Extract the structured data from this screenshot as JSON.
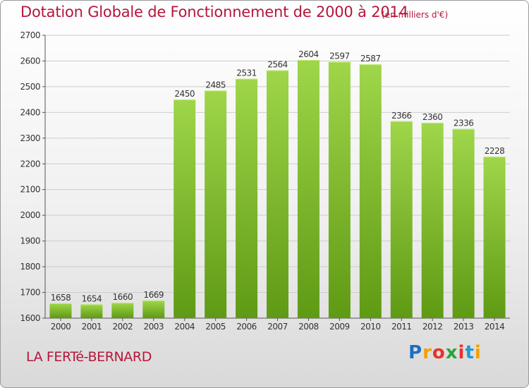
{
  "header": {
    "title": "Dotation Globale de Fonctionnement de 2000 à 2014",
    "unit": "(en milliers d'€)"
  },
  "footer": {
    "commune": "LA FERTé-BERNARD",
    "brand": "Proxiti"
  },
  "colors": {
    "title": "#b5163b",
    "bar_top": "#9fd64a",
    "bar_bottom": "#5f9a14",
    "grid": "#cccccc"
  },
  "chart_data": {
    "type": "bar",
    "title": "Dotation Globale de Fonctionnement de 2000 à 2014",
    "subtitle": "(en milliers d'€)",
    "xlabel": "",
    "ylabel": "",
    "categories": [
      "2000",
      "2001",
      "2002",
      "2003",
      "2004",
      "2005",
      "2006",
      "2007",
      "2008",
      "2009",
      "2010",
      "2011",
      "2012",
      "2013",
      "2014"
    ],
    "values": [
      1658,
      1654,
      1660,
      1669,
      2450,
      2485,
      2531,
      2564,
      2604,
      2597,
      2587,
      2366,
      2360,
      2336,
      2228
    ],
    "ylim": [
      1600,
      2700
    ],
    "yticks": [
      1600,
      1700,
      1800,
      1900,
      2000,
      2100,
      2200,
      2300,
      2400,
      2500,
      2600,
      2700
    ],
    "grid": true,
    "data_labels": true
  }
}
